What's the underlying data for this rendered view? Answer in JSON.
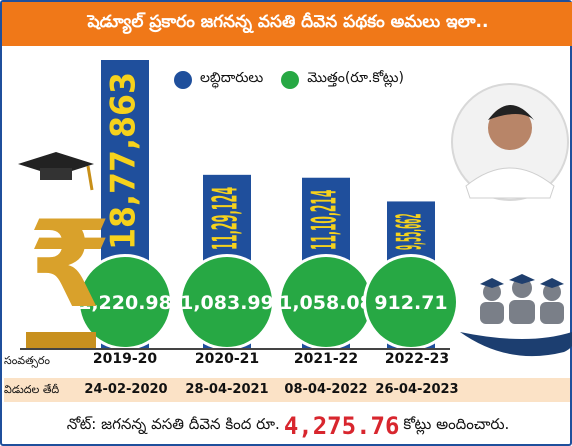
{
  "header": {
    "title": "షెడ్యూల్ ప్రకారం జగనన్న వసతి దీవెన పథకం అమలు ఇలా.."
  },
  "legend": {
    "beneficiaries": "లబ్ధిదారులు",
    "total": "మొత్తం(రూ.కోట్లు)"
  },
  "colors": {
    "bar": "#1f4f9c",
    "bar_label": "#f6d21c",
    "circle": "#27a844",
    "circle_ring": "#ffffff",
    "header": "#f07818"
  },
  "labels": {
    "year": "సంవత్సరం",
    "release_date": "విడుదల తేదీ"
  },
  "note": {
    "prefix": "నోట్: జగనన్న వసతి దీవెన కింద రూ.",
    "total": "4,275.76",
    "suffix": "కోట్లు అందించారు."
  },
  "chart_data": {
    "type": "bar",
    "categories": [
      "2019-20",
      "2020-21",
      "2021-22",
      "2022-23"
    ],
    "release_dates": [
      "24-02-2020",
      "28-04-2021",
      "08-04-2022",
      "26-04-2023"
    ],
    "series": [
      {
        "name": "లబ్ధిదారులు",
        "values": [
          1877863,
          1129124,
          1110214,
          955662
        ],
        "labels": [
          "18,77,863",
          "11,29,124",
          "11,10,214",
          "9,55,662"
        ]
      },
      {
        "name": "మొత్తం(రూ.కోట్లు)",
        "values": [
          1220.98,
          1083.99,
          1058.08,
          912.71
        ],
        "labels": [
          "1,220.98",
          "1,083.99",
          "1,058.08",
          "912.71"
        ]
      }
    ]
  }
}
